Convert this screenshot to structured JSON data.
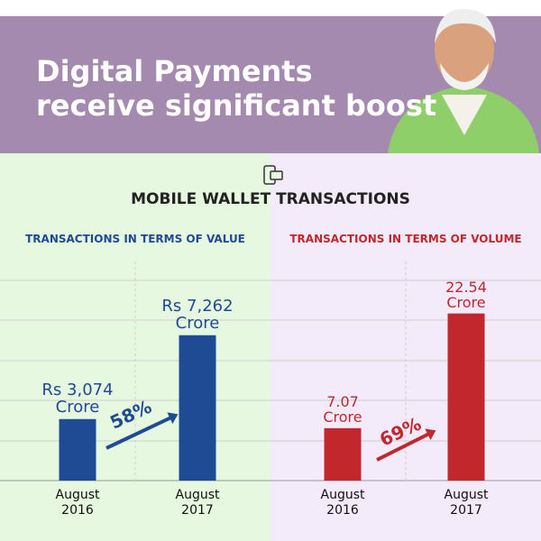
{
  "header": {
    "title": "Digital Payments\nreceive significant boost"
  },
  "title": "MOBILE WALLET TRANSACTIONS",
  "chart_data": [
    {
      "type": "bar",
      "title": "TRANSACTIONS IN TERMS OF VALUE",
      "categories": [
        "August\n2016",
        "August\n2017"
      ],
      "values": [
        3074,
        7262
      ],
      "value_labels": [
        "Rs 3,074\nCrore",
        "Rs 7,262\nCrore"
      ],
      "color": "#1f4a94",
      "ylim": [
        0,
        10000
      ],
      "annotation": "58%"
    },
    {
      "type": "bar",
      "title": "TRANSACTIONS IN TERMS OF VOLUME",
      "categories": [
        "August\n2016",
        "August\n2017"
      ],
      "values": [
        7.07,
        22.54
      ],
      "value_labels": [
        "7.07\nCrore",
        "22.54\nCrore"
      ],
      "color": "#c1272d",
      "ylim": [
        0,
        27
      ],
      "annotation": "69%"
    }
  ]
}
